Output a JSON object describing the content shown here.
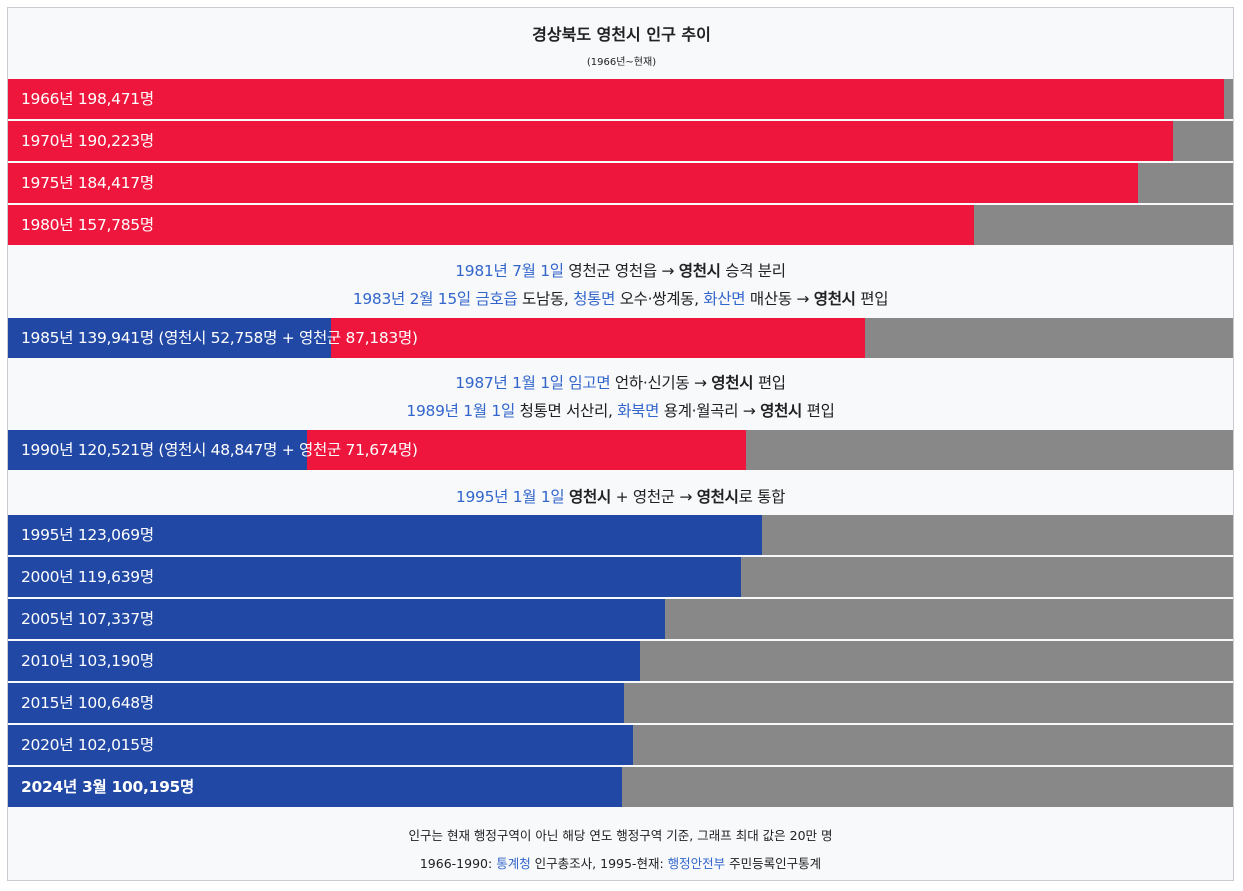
{
  "chart_data": {
    "type": "bar",
    "orientation": "horizontal",
    "title": "경상북도 영천시 인구 추이",
    "subtitle": "(1966년~현재)",
    "xlim": [
      0,
      200000
    ],
    "colors": {
      "red": "#ee163c",
      "blue": "#2148a4",
      "remainder": "#888888"
    },
    "bars": [
      {
        "label": "1966년 198,471명",
        "segments": [
          {
            "color": "red",
            "value": 198471
          }
        ]
      },
      {
        "label": "1970년 190,223명",
        "segments": [
          {
            "color": "red",
            "value": 190223
          }
        ]
      },
      {
        "label": "1975년 184,417명",
        "segments": [
          {
            "color": "red",
            "value": 184417
          }
        ]
      },
      {
        "label": "1980년 157,785명",
        "segments": [
          {
            "color": "red",
            "value": 157785
          }
        ]
      },
      {
        "label_parts": [
          "1985년 139,941명 (영천시 52,758명 + ",
          "영천군 87,183명)"
        ],
        "segments": [
          {
            "color": "blue",
            "value": 52758
          },
          {
            "color": "red",
            "value": 87183
          }
        ]
      },
      {
        "label_parts": [
          "1990년 120,521명 (영천시 48,847명",
          " + 영천군 71,674명)"
        ],
        "segments": [
          {
            "color": "blue",
            "value": 48847
          },
          {
            "color": "red",
            "value": 71674
          }
        ]
      },
      {
        "label": "1995년 123,069명",
        "segments": [
          {
            "color": "blue",
            "value": 123069
          }
        ]
      },
      {
        "label": "2000년 119,639명",
        "segments": [
          {
            "color": "blue",
            "value": 119639
          }
        ]
      },
      {
        "label": "2005년 107,337명",
        "segments": [
          {
            "color": "blue",
            "value": 107337
          }
        ]
      },
      {
        "label": "2010년 103,190명",
        "segments": [
          {
            "color": "blue",
            "value": 103190
          }
        ]
      },
      {
        "label": "2015년 100,648명",
        "segments": [
          {
            "color": "blue",
            "value": 100648
          }
        ]
      },
      {
        "label": "2020년 102,015명",
        "segments": [
          {
            "color": "blue",
            "value": 102015
          }
        ]
      },
      {
        "label": "2024년 3월 100,195명",
        "bold": true,
        "segments": [
          {
            "color": "blue",
            "value": 100195
          }
        ]
      }
    ],
    "notes": [
      [
        {
          "t": "1981년 7월 1일",
          "s": "link"
        },
        {
          "t": " 영천군 영천읍 → "
        },
        {
          "t": "영천시",
          "s": "bold"
        },
        {
          "t": " 승격 분리"
        }
      ],
      [
        {
          "t": "1983년 2월 15일",
          "s": "link"
        },
        {
          "t": " "
        },
        {
          "t": "금호읍",
          "s": "link"
        },
        {
          "t": " 도남동, "
        },
        {
          "t": "청통면",
          "s": "link"
        },
        {
          "t": " 오수·쌍계동, "
        },
        {
          "t": "화산면",
          "s": "link"
        },
        {
          "t": " 매산동 → "
        },
        {
          "t": "영천시",
          "s": "bold"
        },
        {
          "t": " 편입"
        }
      ],
      [
        {
          "t": "1987년 1월 1일",
          "s": "link"
        },
        {
          "t": " "
        },
        {
          "t": "임고면",
          "s": "link"
        },
        {
          "t": " 언하·신기동 → "
        },
        {
          "t": "영천시",
          "s": "bold"
        },
        {
          "t": " 편입"
        }
      ],
      [
        {
          "t": "1989년 1월 1일",
          "s": "link"
        },
        {
          "t": " 청통면 서산리, "
        },
        {
          "t": "화북면",
          "s": "link"
        },
        {
          "t": " 용계·월곡리 → "
        },
        {
          "t": "영천시",
          "s": "bold"
        },
        {
          "t": " 편입"
        }
      ],
      [
        {
          "t": "1995년 1월 1일",
          "s": "link"
        },
        {
          "t": " "
        },
        {
          "t": "영천시",
          "s": "bold"
        },
        {
          "t": " + 영천군 → "
        },
        {
          "t": "영천시",
          "s": "bold"
        },
        {
          "t": "로 통합"
        }
      ]
    ],
    "footer": [
      [
        {
          "t": "인구는 현재 행정구역이 아닌 해당 연도 행정구역 기준, 그래프 최대 값은 20만 명"
        }
      ],
      [
        {
          "t": "1966-1990: "
        },
        {
          "t": "통계청",
          "s": "link"
        },
        {
          "t": " 인구총조사, 1995-현재: "
        },
        {
          "t": "행정안전부",
          "s": "link"
        },
        {
          "t": " 주민등록인구통계"
        }
      ]
    ]
  }
}
